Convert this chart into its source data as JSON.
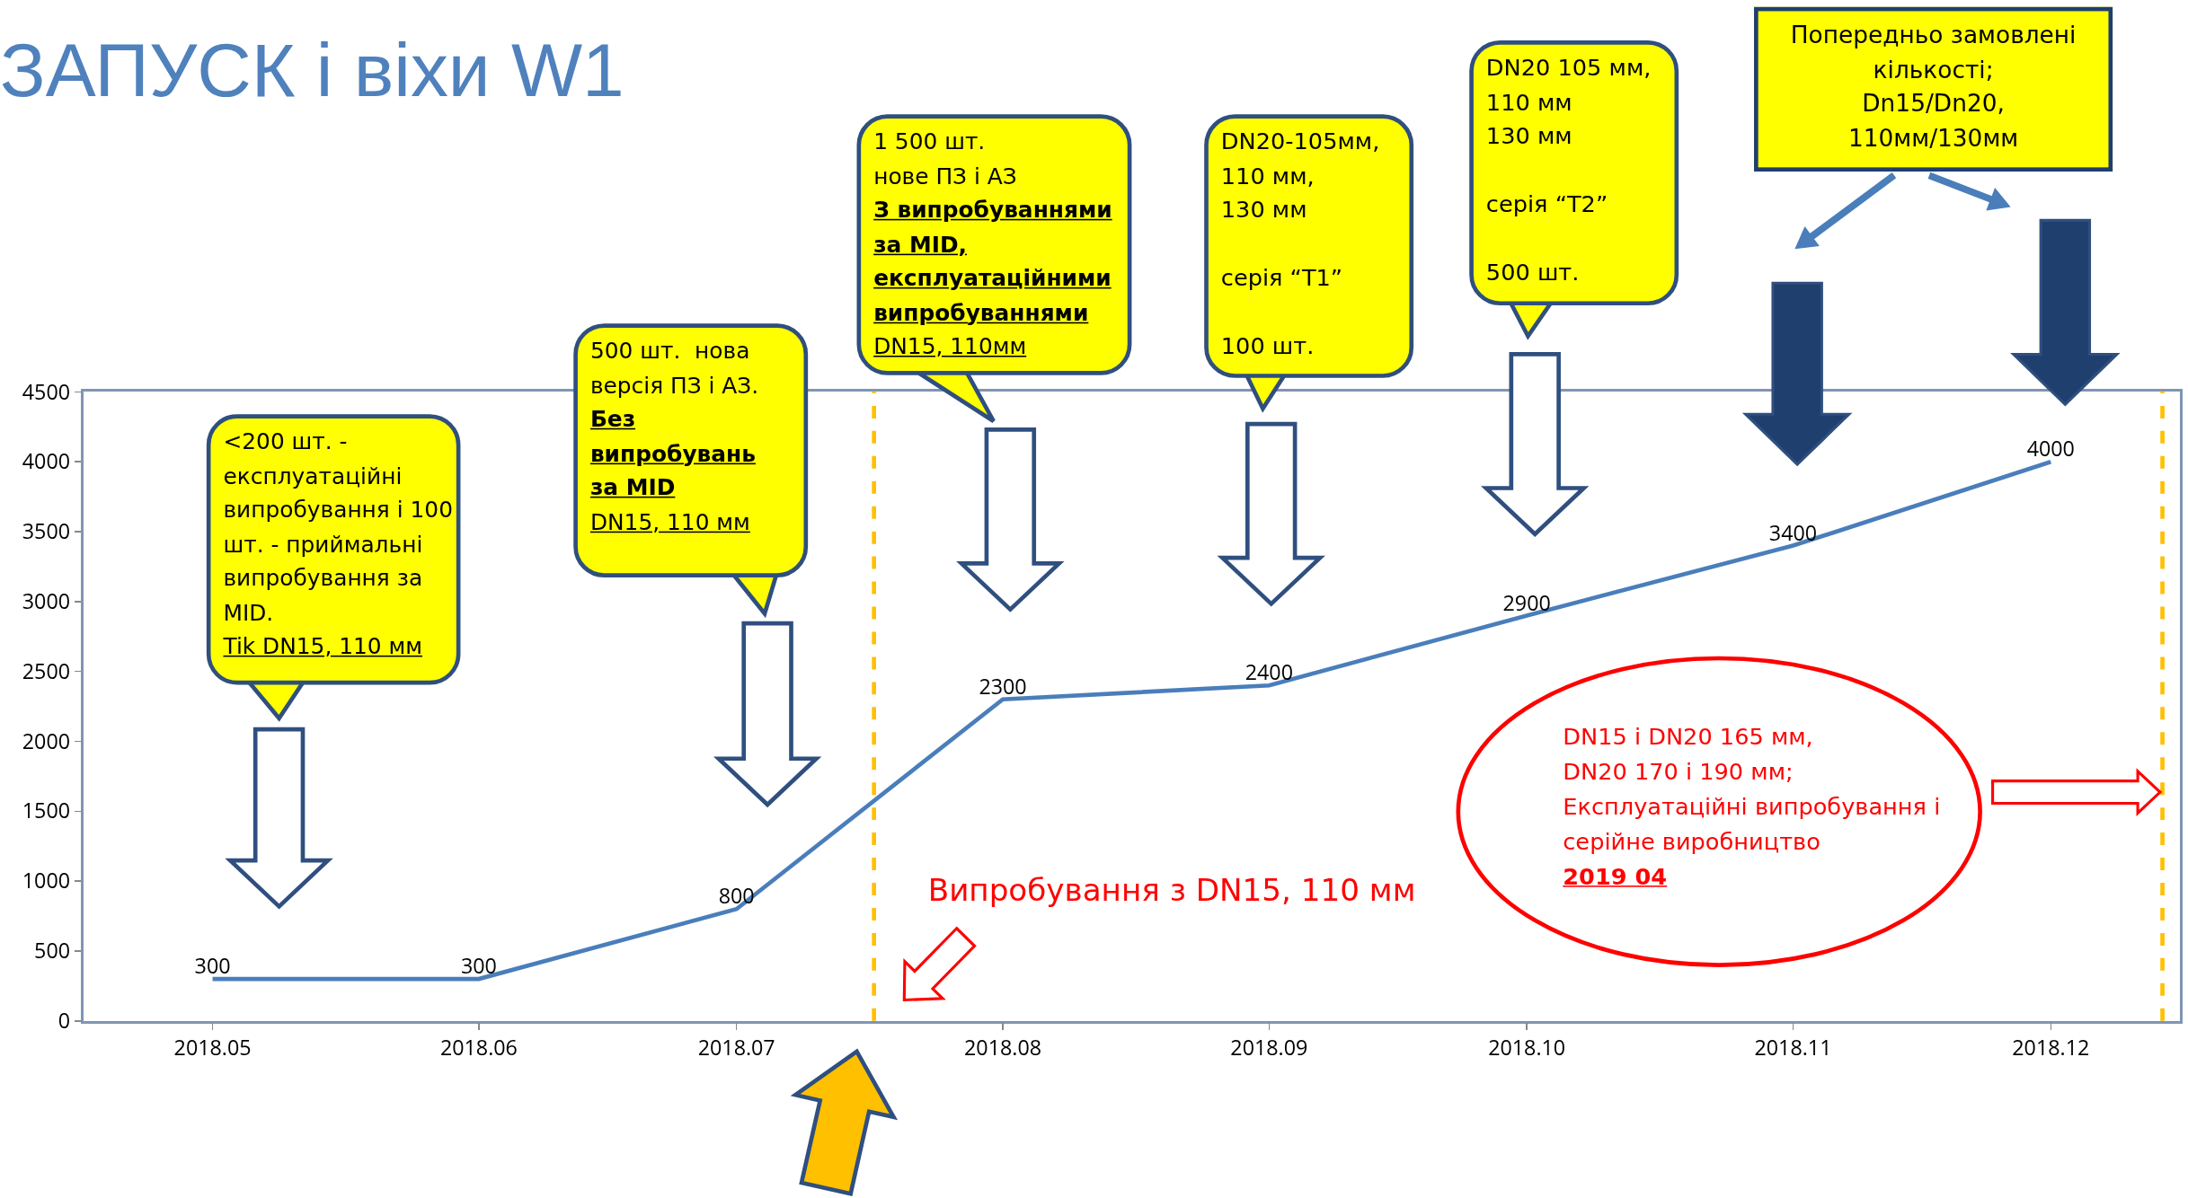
{
  "chart_data": {
    "type": "line",
    "title": "ЗАПУСК і віхи W1",
    "x": [
      "2018-05",
      "2018-06",
      "2018-07",
      "2018-08",
      "2018-09",
      "2018-10",
      "2018-11",
      "2018-12"
    ],
    "values": [
      300,
      300,
      800,
      2300,
      2400,
      2900,
      3400,
      4000
    ],
    "color": "#4a7ebb",
    "data_labels": true,
    "xlim": [
      "2018-04-16",
      "2018-12-16"
    ],
    "xticks": [
      {
        "value": "2018-05",
        "label": "2018.05"
      },
      {
        "value": "2018-06",
        "label": "2018.06"
      },
      {
        "value": "2018-07",
        "label": "2018.07"
      },
      {
        "value": "2018-08",
        "label": "2018.08"
      },
      {
        "value": "2018-09",
        "label": "2018.09"
      },
      {
        "value": "2018-10",
        "label": "2018.10"
      },
      {
        "value": "2018-11",
        "label": "2018.11"
      },
      {
        "value": "2018-12",
        "label": "2018.12"
      }
    ],
    "ylim": [
      0,
      4500
    ],
    "yticks": [
      0,
      500,
      1000,
      1500,
      2000,
      2500,
      3000,
      3500,
      4000,
      4500
    ],
    "ref_lines": [
      {
        "axis": "x",
        "value": "2018-07-17",
        "color": "#ffc000",
        "line_style": "dashed"
      },
      {
        "axis": "x",
        "value": "2018-12-14",
        "color": "#ffc000",
        "line_style": "dashed"
      }
    ],
    "annotations": [
      "<200 шт. -\nексплуатаційні\nвипробування і 100\nшт. - приймальні\nвипробування за\nMID.\nTik DN15, 110 мм",
      "500 шт.  нова\nверсія ПЗ і АЗ.\nБез\nвипробувань\nза MID\nDN15, 110 мм",
      "1 500 шт.\nнове ПЗ і АЗ\nЗ випробуваннями\nза MID,\nексплуатаційними\nвипробуваннями\nDN15, 110мм",
      "DN20-105мм,\n110 мм,\n130 мм\n\nсерія “T1”\n\n100 шт.",
      "DN20 105 мм,\n110 мм\n130 мм\n\nсерія “T2”\n\n500 шт.",
      "Попередньо замовлені\nкількості;\nDn15/Dn20,\n110мм/130мм",
      "Випробування з DN15, 110 мм",
      "DN15 і DN20 165 мм,\nDN20 170 і 190 мм;\nЕксплуатаційні випробування і\nсерійне виробництво\n2019 04"
    ]
  }
}
